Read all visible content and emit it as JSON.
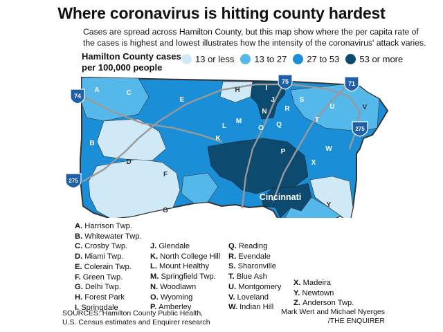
{
  "header": {
    "title": "Where coronavirus is hitting county hardest",
    "subtitle": "Cases are spread across Hamilton County, but this map show where the per capita rate of the cases is highest and lowest illustrates how the intensity of the coronavirus' attack varies."
  },
  "legend": {
    "title_line1": "Hamilton County cases",
    "title_line2": "per 100,000 people",
    "items": [
      {
        "label": "13 or less",
        "color": "#cfe9f7"
      },
      {
        "label": "13 to 27",
        "color": "#55b8ea"
      },
      {
        "label": "27 to 53",
        "color": "#1a8fd8"
      },
      {
        "label": "53 or more",
        "color": "#0c4a70"
      }
    ]
  },
  "map": {
    "city_label": "Cincinnati",
    "interstates": [
      "74",
      "75",
      "71",
      "275",
      "275"
    ],
    "region_letters": [
      "A",
      "B",
      "C",
      "D",
      "E",
      "F",
      "G",
      "H",
      "I",
      "J",
      "K",
      "L",
      "M",
      "N",
      "O",
      "P",
      "Q",
      "R",
      "S",
      "T",
      "U",
      "V",
      "W",
      "X",
      "Y",
      "Z"
    ]
  },
  "key": {
    "col1": [
      {
        "letter": "A.",
        "name": "Harrison Twp."
      },
      {
        "letter": "B.",
        "name": "Whitewater Twp."
      },
      {
        "letter": "C.",
        "name": "Crosby Twp."
      },
      {
        "letter": "D.",
        "name": "Miami Twp."
      },
      {
        "letter": "E.",
        "name": "Colerain Twp."
      },
      {
        "letter": "F.",
        "name": "Green Twp."
      },
      {
        "letter": "G.",
        "name": "Delhi Twp."
      },
      {
        "letter": "H.",
        "name": "Forest Park"
      },
      {
        "letter": "I.",
        "name": "Springdale"
      }
    ],
    "col2": [
      {
        "letter": "J.",
        "name": "Glendale"
      },
      {
        "letter": "K.",
        "name": "North College Hill"
      },
      {
        "letter": "L.",
        "name": "Mount Healthy"
      },
      {
        "letter": "M.",
        "name": "Springfield Twp."
      },
      {
        "letter": "N.",
        "name": "Woodlawn"
      },
      {
        "letter": "O.",
        "name": "Wyoming"
      },
      {
        "letter": "P.",
        "name": "Amberley"
      }
    ],
    "col3": [
      {
        "letter": "Q.",
        "name": "Reading"
      },
      {
        "letter": "R.",
        "name": "Evendale"
      },
      {
        "letter": "S.",
        "name": "Sharonville"
      },
      {
        "letter": "T.",
        "name": "Blue Ash"
      },
      {
        "letter": "U.",
        "name": "Montgomery"
      },
      {
        "letter": "V.",
        "name": "Loveland"
      },
      {
        "letter": "W.",
        "name": "Indian Hill"
      }
    ],
    "col4": [
      {
        "letter": "X.",
        "name": "Madeira"
      },
      {
        "letter": "Y.",
        "name": "Newtown"
      },
      {
        "letter": "Z.",
        "name": "Anderson Twp."
      }
    ]
  },
  "footer": {
    "sources_line1": "SOURCES: Hamilton County Public Health,",
    "sources_line2": "U.S. Census estimates and Enquirer research",
    "credit_line1": "Mark Wert and Michael Nyerges",
    "credit_line2": "/THE ENQUIRER"
  }
}
